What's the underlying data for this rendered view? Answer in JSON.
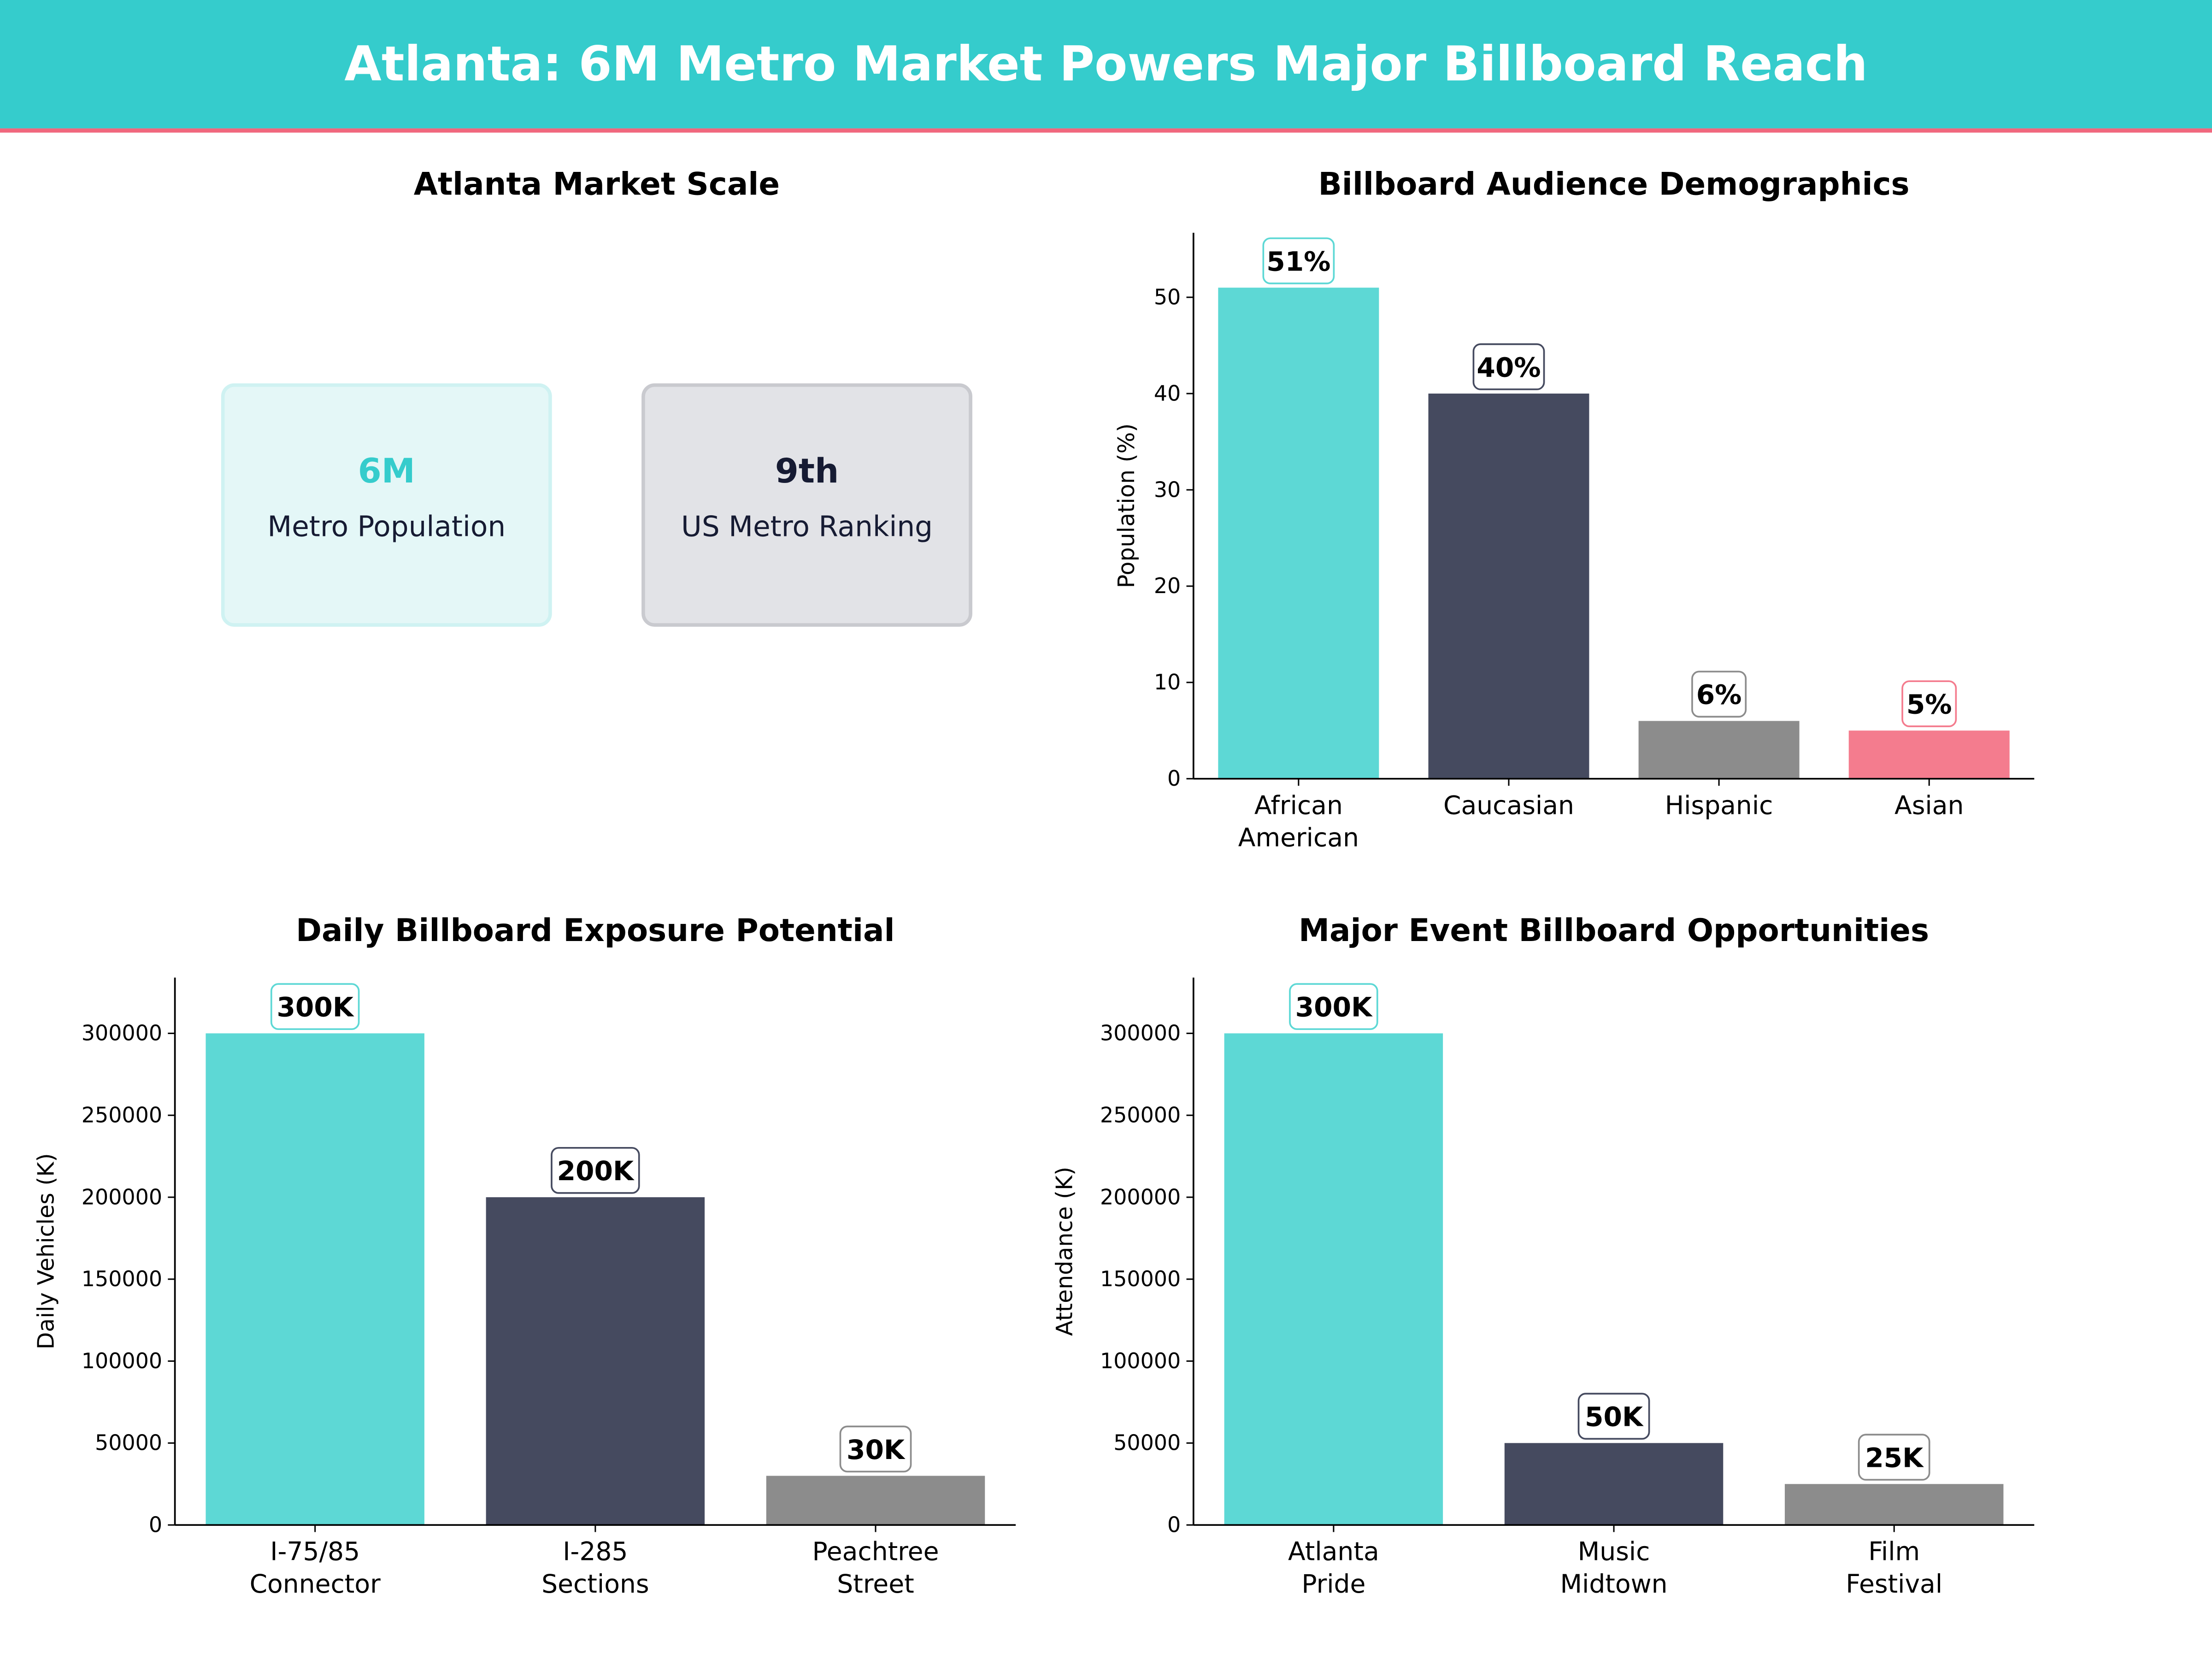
{
  "header": {
    "title": "Atlanta: 6M Metro Market Powers Major Billboard Reach",
    "bg_color": "#35CCCC",
    "accent_line_color": "#F0677D"
  },
  "market_scale": {
    "title": "Atlanta Market Scale",
    "cards": [
      {
        "value": "6M",
        "label": "Metro Population",
        "value_color": "#35CCCC",
        "bg": "#E4F7F7",
        "border": "#CFF2F2"
      },
      {
        "value": "9th",
        "label": "US Metro Ranking",
        "value_color": "#161B33",
        "bg": "#E2E3E7",
        "border": "#C9CACF"
      }
    ]
  },
  "chart_data": [
    {
      "type": "bar",
      "title": "Billboard Audience Demographics",
      "ylabel": "Population (%)",
      "categories": [
        [
          "African",
          "American"
        ],
        [
          "Caucasian"
        ],
        [
          "Hispanic"
        ],
        [
          "Asian"
        ]
      ],
      "values": [
        51,
        40,
        6,
        5
      ],
      "data_labels": [
        "51%",
        "40%",
        "6%",
        "5%"
      ],
      "colors": [
        "#5DD8D5",
        "#454A5F",
        "#8C8C8C",
        "#F47C8E"
      ],
      "yticks": [
        0,
        10,
        20,
        30,
        40,
        50
      ],
      "ylim": [
        0,
        56.7
      ],
      "grid": false
    },
    {
      "type": "bar",
      "title": "Daily Billboard Exposure Potential",
      "ylabel": "Daily Vehicles (K)",
      "categories": [
        [
          "I-75/85",
          "Connector"
        ],
        [
          "I-285",
          "Sections"
        ],
        [
          "Peachtree",
          "Street"
        ]
      ],
      "values": [
        300000,
        200000,
        30000
      ],
      "data_labels": [
        "300K",
        "200K",
        "30K"
      ],
      "colors": [
        "#5DD8D5",
        "#454A5F",
        "#8C8C8C"
      ],
      "yticks": [
        0,
        50000,
        100000,
        150000,
        200000,
        250000,
        300000
      ],
      "ylim": [
        0,
        334000
      ],
      "grid": false
    },
    {
      "type": "bar",
      "title": "Major Event Billboard Opportunities",
      "ylabel": "Attendance (K)",
      "categories": [
        [
          "Atlanta",
          "Pride"
        ],
        [
          "Music",
          "Midtown"
        ],
        [
          "Film",
          "Festival"
        ]
      ],
      "values": [
        300000,
        50000,
        25000
      ],
      "data_labels": [
        "300K",
        "50K",
        "25K"
      ],
      "colors": [
        "#5DD8D5",
        "#454A5F",
        "#8C8C8C"
      ],
      "yticks": [
        0,
        50000,
        100000,
        150000,
        200000,
        250000,
        300000
      ],
      "ylim": [
        0,
        334000
      ],
      "grid": false
    }
  ]
}
